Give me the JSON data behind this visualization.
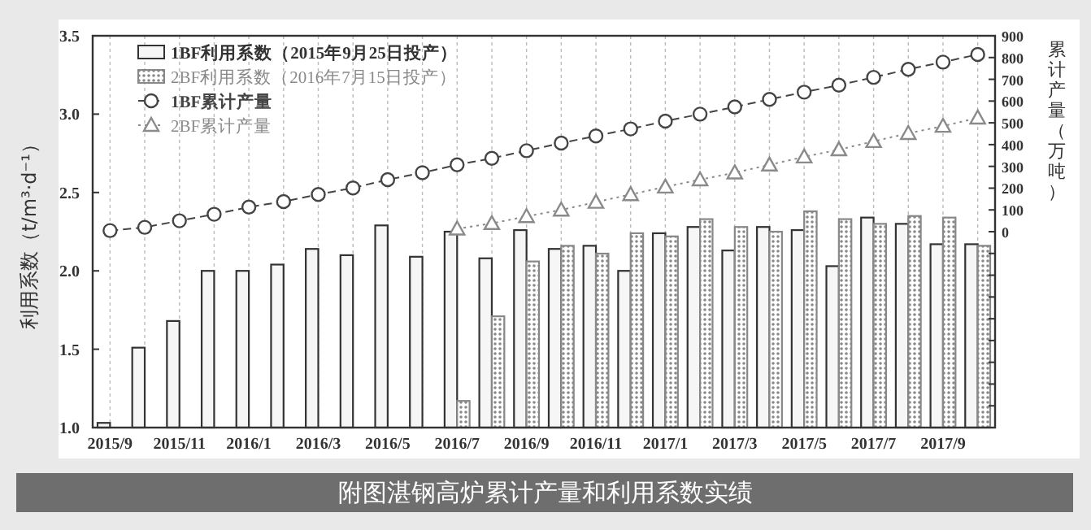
{
  "chart_data": {
    "type": "bar",
    "title": "附图湛钢高炉累计产量和利用系数实绩",
    "ylabel": "利用系数（t/m³·d⁻¹）",
    "y2label": "累计产量（万吨）",
    "categories": [
      "2015/9",
      null,
      "2015/11",
      null,
      "2016/1",
      null,
      "2016/3",
      null,
      "2016/5",
      null,
      "2016/7",
      null,
      "2016/9",
      null,
      "2016/11",
      null,
      "2017/1",
      null,
      "2017/3",
      null,
      "2017/5",
      null,
      "2017/7",
      null,
      "2017/9",
      null
    ],
    "series": [
      {
        "name": "1BF利用系数（2015年9月25日投产）",
        "color": "#333333",
        "values": [
          1.03,
          1.51,
          1.68,
          2.0,
          2.0,
          2.04,
          2.14,
          2.1,
          2.29,
          2.09,
          2.25,
          2.08,
          2.26,
          2.14,
          2.16,
          2.0,
          2.24,
          2.28,
          2.13,
          2.28,
          2.26,
          2.03,
          2.34,
          2.3,
          2.17,
          2.17
        ]
      },
      {
        "name": "2BF利用系数（2016年7月15日投产）",
        "color": "#888888",
        "values": [
          null,
          null,
          null,
          null,
          null,
          null,
          null,
          null,
          null,
          null,
          1.17,
          1.71,
          2.06,
          2.16,
          2.11,
          2.24,
          2.22,
          2.33,
          2.28,
          2.25,
          2.38,
          2.33,
          2.3,
          2.35,
          2.34,
          2.16
        ]
      },
      {
        "name": "1BF累计产量",
        "type": "line",
        "axis": "y2",
        "marker": "circle",
        "line_style": "dashed",
        "color": "#444444",
        "values": [
          5,
          20,
          50,
          80,
          113,
          138,
          171,
          201,
          239,
          271,
          307,
          337,
          372,
          407,
          440,
          472,
          508,
          540,
          573,
          608,
          641,
          673,
          709,
          746,
          779,
          814
        ]
      },
      {
        "name": "2BF累计产量",
        "type": "line",
        "axis": "y2",
        "marker": "triangle",
        "line_style": "dotted",
        "color": "#8a8a8a",
        "values": [
          null,
          null,
          null,
          null,
          null,
          null,
          null,
          null,
          null,
          null,
          13,
          38,
          70,
          100,
          136,
          171,
          206,
          239,
          271,
          307,
          344,
          377,
          415,
          452,
          485,
          523
        ]
      }
    ],
    "ylim": [
      1,
      3.5
    ],
    "yticks": [
      {
        "value": 1,
        "label": "1.0"
      },
      1.5,
      {
        "value": 2,
        "label": "2.0"
      },
      2.5,
      {
        "value": 3,
        "label": "3.0"
      },
      3.5
    ],
    "y2lim": [
      -900,
      900
    ],
    "y2ticks": [
      {
        "value": -800,
        "label": null
      },
      {
        "value": -700,
        "label": null
      },
      {
        "value": -600,
        "label": null
      },
      {
        "value": -500,
        "label": null
      },
      {
        "value": -400,
        "label": null
      },
      {
        "value": -300,
        "label": null
      },
      {
        "value": -200,
        "label": null
      },
      {
        "value": -100,
        "label": null
      },
      0,
      100,
      200,
      300,
      400,
      500,
      600,
      700,
      800,
      900
    ],
    "grid": "x",
    "legend": "top left"
  }
}
